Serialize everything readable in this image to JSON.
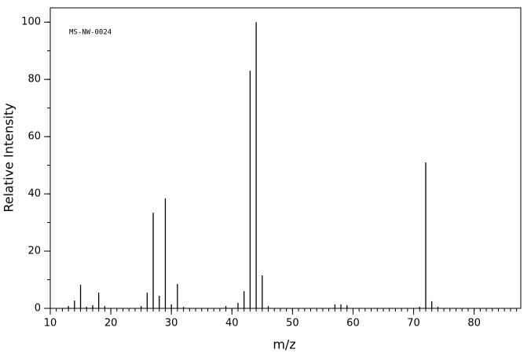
{
  "chart_data": {
    "type": "bar",
    "annotation": "MS-NW-0024",
    "xlabel": "m/z",
    "ylabel": "Relative Intensity",
    "x": [
      13,
      14,
      15,
      16,
      17,
      18,
      19,
      25,
      26,
      27,
      28,
      29,
      30,
      31,
      32,
      39,
      41,
      42,
      43,
      44,
      45,
      46,
      57,
      58,
      59,
      71,
      72,
      73,
      74
    ],
    "values": [
      0.8,
      2.7,
      8.2,
      0.5,
      1.1,
      5.5,
      0.8,
      0.8,
      5.5,
      33.4,
      4.4,
      38.4,
      1.4,
      8.5,
      0.5,
      0.8,
      1.9,
      6.0,
      83,
      100,
      11.5,
      0.8,
      1.4,
      1.4,
      1.1,
      0.5,
      51,
      2.5,
      0.5
    ],
    "color": "#000000",
    "xlim": [
      10,
      87.7
    ],
    "ylim": [
      0,
      105
    ],
    "xticks": [
      10,
      20,
      30,
      40,
      50,
      60,
      70,
      80
    ],
    "yticks": [
      0,
      20,
      40,
      60,
      80,
      100
    ],
    "xminor_step": 1,
    "yminor_step": 10
  }
}
